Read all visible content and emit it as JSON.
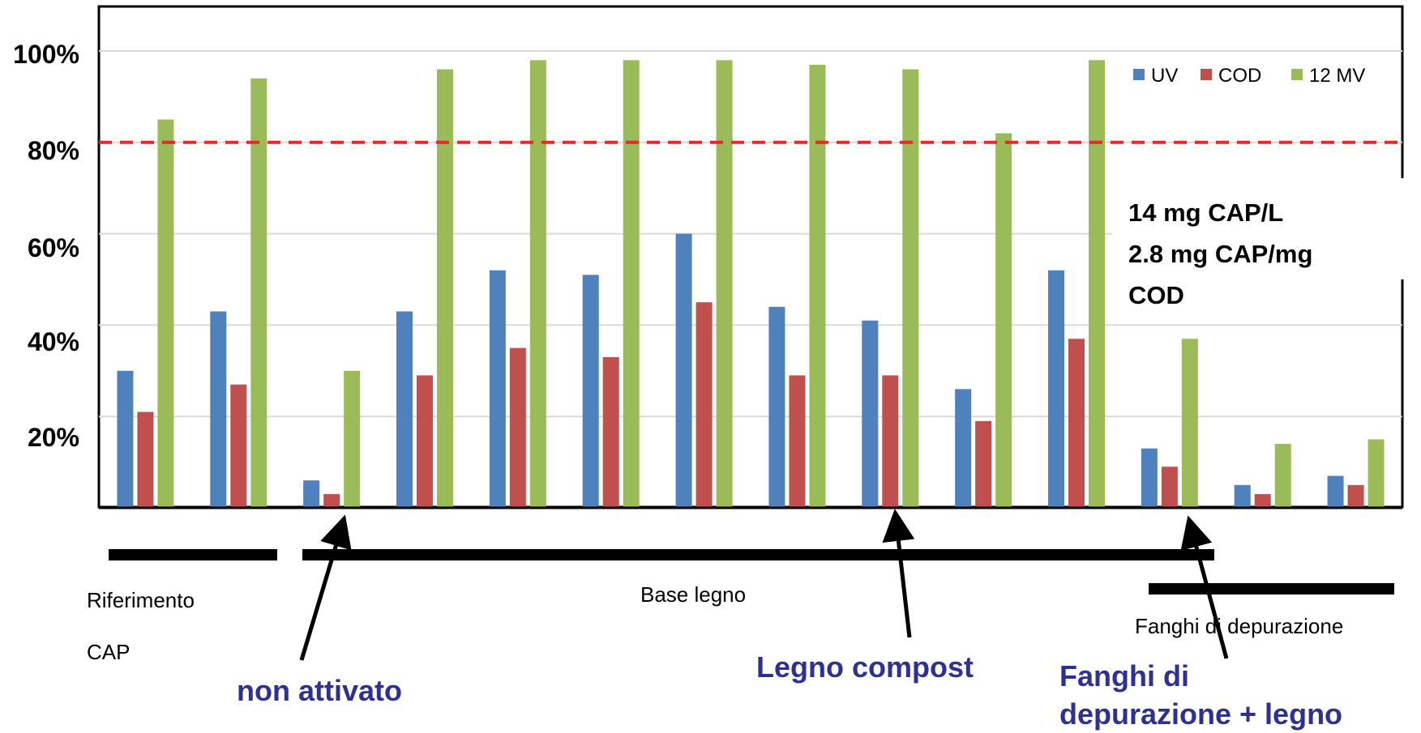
{
  "chart_data": {
    "type": "bar",
    "y_ticks": [
      "20%",
      "40%",
      "60%",
      "80%",
      "100%"
    ],
    "ylim": [
      0,
      100
    ],
    "grid": true,
    "legend_position": "top-right",
    "threshold": 80,
    "series": [
      {
        "name": "UV",
        "color": "#4f81bd",
        "values": [
          30,
          43,
          6,
          43,
          52,
          51,
          60,
          44,
          41,
          26,
          52,
          13,
          5,
          7
        ]
      },
      {
        "name": "COD",
        "color": "#c0504d",
        "values": [
          21,
          27,
          3,
          29,
          35,
          33,
          45,
          29,
          29,
          19,
          37,
          9,
          3,
          5
        ]
      },
      {
        "name": "12 MV",
        "color": "#9bbb59",
        "values": [
          85,
          94,
          30,
          96,
          98,
          98,
          98,
          97,
          96,
          82,
          98,
          37,
          14,
          15
        ]
      }
    ],
    "annotation_lines": [
      "14 mg CAP/L",
      "2.8 mg CAP/mg",
      "COD"
    ]
  },
  "groups": {
    "reference_line1": "Riferimento",
    "reference_line2": "CAP",
    "wood": "Base legno",
    "sludge": "Fanghi di depurazione"
  },
  "callouts": {
    "not_activated": "non attivato",
    "wood_compost": "Legno compost",
    "sludge_wood_line1": "Fanghi di",
    "sludge_wood_line2": "depurazione + legno"
  },
  "colors": {
    "threshold": "#e8282b",
    "callout_text": "#2e3192"
  }
}
